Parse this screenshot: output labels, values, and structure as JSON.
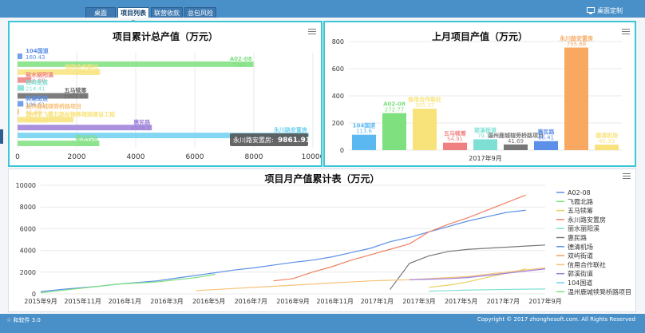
{
  "nav": {
    "tabs": [
      "桌面",
      "项目列表产",
      "联营收款数",
      "总包风险评"
    ],
    "custom_label": "桌面定制"
  },
  "charts": {
    "cumulative": {
      "type": "bar",
      "title": "项目累计总产值（万元）",
      "orientation": "horizontal",
      "xlim": [
        0,
        10000
      ],
      "xticks": [
        "0",
        "2000",
        "4000",
        "6000",
        "8000",
        "10000"
      ],
      "bars": [
        {
          "name": "104国道",
          "value": 160.43,
          "color": "#5b8fe8"
        },
        {
          "name": "A02-08",
          "value": 7988.9,
          "color": "#7ee07e"
        },
        {
          "name": "信用合作联社",
          "value": 2792.56,
          "color": "#f8e37a"
        },
        {
          "name": "丽水丽阳溪",
          "value": 456.88,
          "color": "#f08080"
        },
        {
          "name": "双屿街道",
          "value": 214.41,
          "color": "#7ee0d4"
        },
        {
          "name": "五马犊筹",
          "value": 2393.43,
          "color": "#666"
        },
        {
          "name": "郭溪街道",
          "value": 196.61,
          "color": "#5b8fe8"
        },
        {
          "name": "温州鹿城辖旁桥路项目",
          "value": 41.69,
          "color": "#f8c27a"
        },
        {
          "name": "温州市飞霞北路标铸移疏路建设工程",
          "value": 1892.32,
          "color": "#f8e37a"
        },
        {
          "name": "惠民路",
          "value": 4546.1,
          "color": "#9b7ed8"
        },
        {
          "name": "永川路安置房",
          "value": 9861.91,
          "color": "#6fd0f0"
        },
        {
          "name": "德清机场",
          "value": 2768.5,
          "color": "#7ee07e"
        }
      ],
      "tooltip": {
        "label": "永川路安置房:",
        "value": "9861.91"
      }
    },
    "monthly": {
      "type": "bar",
      "title": "上月项目产值（万元）",
      "xlabel": "2017年9月",
      "ylim": [
        0,
        800
      ],
      "yticks": [
        "0",
        "200",
        "400",
        "600",
        "800"
      ],
      "bars": [
        {
          "name": "104国道",
          "value": 113.6,
          "color": "#5bb8f0"
        },
        {
          "name": "A02-08",
          "value": 272.77,
          "color": "#7ee07e"
        },
        {
          "name": "信用合作联社",
          "value": 305.37,
          "color": "#f8e37a"
        },
        {
          "name": "五马犊筹",
          "value": 54.91,
          "color": "#f08080"
        },
        {
          "name": "郭溪街道",
          "value": 79.79,
          "color": "#7ee0d4"
        },
        {
          "name": "温州鹿城辖旁桥路项目",
          "value": 41.69,
          "color": "#777"
        },
        {
          "name": "惠民路",
          "value": 66.41,
          "color": "#5b8fe8"
        },
        {
          "name": "永川路安置房",
          "value": 755.68,
          "color": "#f8a860"
        },
        {
          "name": "德清机场",
          "value": 40.33,
          "color": "#f8e37a"
        }
      ]
    },
    "trend": {
      "type": "line",
      "title": "项目月产值累计表（万元）",
      "ylim": [
        0,
        10000
      ],
      "yticks": [
        "0",
        "2000",
        "4000",
        "6000",
        "8000",
        "10000"
      ],
      "xticks": [
        "2015年9月",
        "2015年11月",
        "2016年1月",
        "2016年3月",
        "2016年5月",
        "2016年7月",
        "2016年9月",
        "2016年11月",
        "2017年1月",
        "2017年3月",
        "2017年5月",
        "2017年7月",
        "2017年9月"
      ],
      "legend": [
        {
          "name": "A02-08",
          "color": "#5b8fe8"
        },
        {
          "name": "飞霞北路",
          "color": "#7ee07e"
        },
        {
          "name": "五马犊筹",
          "color": "#e8d060"
        },
        {
          "name": "永川路安置房",
          "color": "#f08060"
        },
        {
          "name": "丽水丽阳溪",
          "color": "#7ee0d4"
        },
        {
          "name": "惠民路",
          "color": "#777"
        },
        {
          "name": "德清机场",
          "color": "#5b8fe8"
        },
        {
          "name": "双屿街道",
          "color": "#f0a060"
        },
        {
          "name": "信用合作联社",
          "color": "#f8c27a"
        },
        {
          "name": "郭溪街道",
          "color": "#9b7ed8"
        },
        {
          "name": "104国道",
          "color": "#6fd0f0"
        },
        {
          "name": "温州鹿城犊凳桥路项目",
          "color": "#7ee07e"
        }
      ],
      "series": [
        {
          "name": "A02-08",
          "x": [
            0,
            1,
            2,
            3,
            4,
            5,
            6,
            7,
            8,
            9,
            10,
            11,
            12,
            13,
            14,
            15,
            16,
            17,
            18,
            19,
            20,
            21,
            22,
            23,
            24,
            25
          ],
          "values": [
            200,
            400,
            550,
            700,
            900,
            1050,
            1200,
            1450,
            1700,
            1950,
            2200,
            2400,
            2650,
            2900,
            3100,
            3400,
            3800,
            4200,
            4800,
            5200,
            5700,
            6200,
            6700,
            7100,
            7500,
            7700
          ]
        },
        {
          "name": "永川路安置房",
          "x": [
            12,
            13,
            14,
            15,
            16,
            17,
            18,
            19,
            20,
            21,
            22,
            23,
            24,
            25
          ],
          "values": [
            1200,
            1400,
            2000,
            2500,
            3100,
            3600,
            4100,
            4600,
            5700,
            6400,
            7000,
            7700,
            8400,
            9100
          ]
        },
        {
          "name": "飞霞北路",
          "x": [
            0,
            1,
            2,
            3,
            4,
            5,
            6,
            7,
            8,
            9
          ],
          "values": [
            100,
            300,
            500,
            700,
            900,
            1000,
            1100,
            1300,
            1500,
            1800
          ]
        },
        {
          "name": "惠民路",
          "x": [
            18,
            19,
            20,
            21,
            22,
            23,
            24,
            25,
            26
          ],
          "values": [
            400,
            2800,
            3500,
            3900,
            4100,
            4200,
            4300,
            4400,
            4500
          ]
        },
        {
          "name": "五马犊筹",
          "x": [
            20,
            21,
            22,
            23,
            24,
            25
          ],
          "values": [
            600,
            800,
            1100,
            1500,
            1900,
            2300
          ]
        },
        {
          "name": "信用合作联社",
          "x": [
            8,
            9,
            10,
            11,
            12,
            13,
            14,
            15,
            16,
            17,
            18,
            19,
            20,
            21,
            22,
            23,
            24,
            25,
            26
          ],
          "values": [
            300,
            400,
            500,
            600,
            700,
            800,
            900,
            1000,
            1100,
            1200,
            1250,
            1300,
            1400,
            1500,
            1600,
            1800,
            2000,
            2200,
            2400
          ]
        },
        {
          "name": "郭溪街道",
          "x": [
            19,
            20,
            21,
            22,
            23,
            24,
            25,
            26
          ],
          "values": [
            1300,
            1350,
            1400,
            1500,
            1700,
            1900,
            2100,
            2300
          ]
        },
        {
          "name": "丽水丽阳溪",
          "x": [
            20,
            21,
            22,
            23,
            24,
            25,
            26
          ],
          "values": [
            250,
            300,
            350,
            380,
            410,
            430,
            450
          ]
        }
      ]
    }
  },
  "footer": {
    "left": "☆ 和软件 3.0",
    "right": "Copyright © 2017 zhonghesoft.com. All Rights Reserved"
  },
  "icons": {
    "custom": "monitor-icon",
    "menu": "hamburger-icon"
  }
}
